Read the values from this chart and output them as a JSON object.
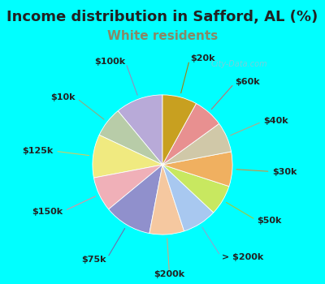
{
  "title": "Income distribution in Safford, AL (%)",
  "subtitle": "White residents",
  "title_color": "#222222",
  "subtitle_color": "#888866",
  "background_color": "#00ffff",
  "chart_bg_color": "#ddf0e8",
  "labels": [
    "$100k",
    "$10k",
    "$125k",
    "$150k",
    "$75k",
    "$200k",
    "> $200k",
    "$50k",
    "$30k",
    "$40k",
    "$60k",
    "$20k"
  ],
  "values": [
    11,
    7,
    10,
    8,
    11,
    8,
    8,
    7,
    8,
    7,
    7,
    8
  ],
  "colors": [
    "#b8aad8",
    "#b8cca8",
    "#f0ea80",
    "#f0b0b8",
    "#9090cc",
    "#f5c8a0",
    "#a8c8f0",
    "#c8e860",
    "#f0b060",
    "#d0c8a8",
    "#e89090",
    "#c8a020"
  ],
  "line_colors": [
    "#9090bb",
    "#90aa80",
    "#d0cc60",
    "#e090a0",
    "#7070aa",
    "#d0a880",
    "#88a8d0",
    "#a0c840",
    "#d09040",
    "#b0a888",
    "#c07070",
    "#a08010"
  ],
  "watermark": "City-Data.com",
  "title_fontsize": 13,
  "subtitle_fontsize": 11,
  "label_fontsize": 8
}
